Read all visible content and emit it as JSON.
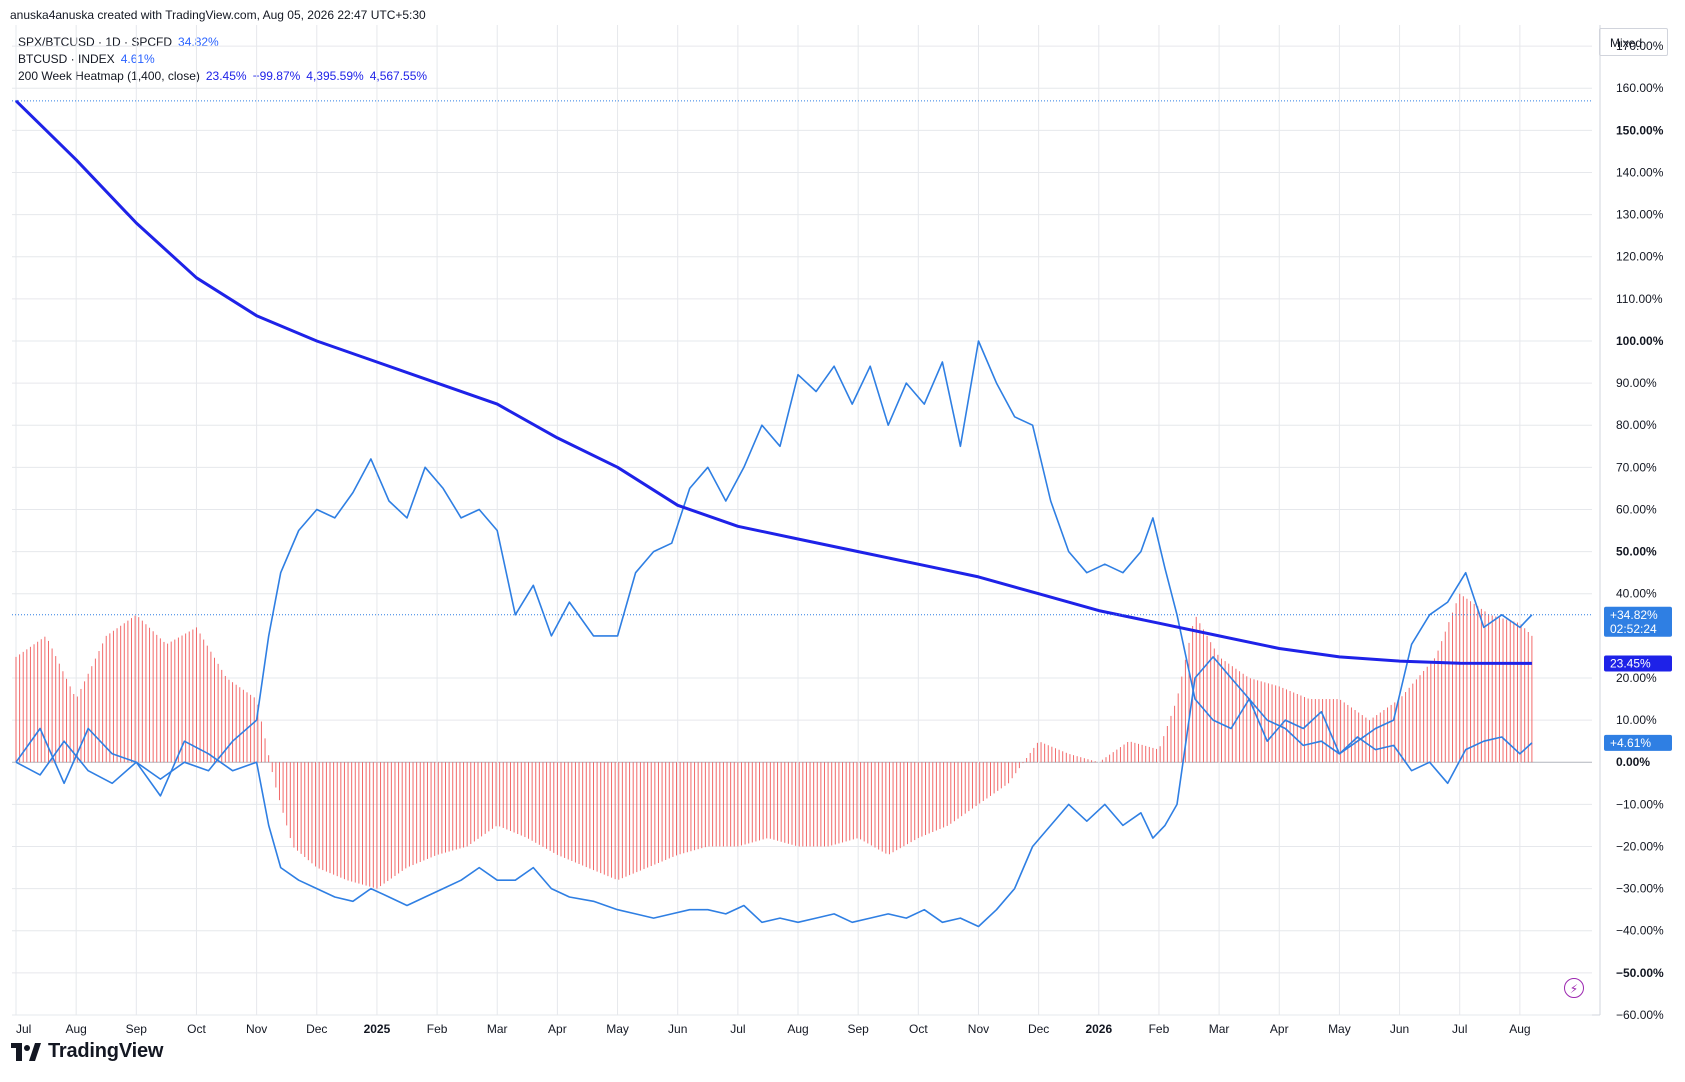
{
  "header": {
    "attribution": "anuska4anuska created with TradingView.com, Aug 05, 2026 22:47 UTC+5:30"
  },
  "legend": [
    {
      "name": "SPX/BTCUSD · 1D · SPCFD",
      "values": [
        "34.82%"
      ]
    },
    {
      "name": "BTCUSD · INDEX",
      "values": [
        "4.61%"
      ]
    },
    {
      "name": "200 Week Heatmap (1,400, close)",
      "values": [
        "23.45%",
        "−99.87%",
        "4,395.59%",
        "4,567.55%"
      ]
    }
  ],
  "scale_mode": "Mixed",
  "footer": {
    "brand": "TradingView"
  },
  "colors": {
    "spx_btc": "#2f7fe3",
    "btcusd": "#2f7fe3",
    "heatmap_ma": "#1e22e8",
    "heatmap_bars": "#f05050",
    "grid": "#e6e8ec"
  },
  "chart_data": {
    "type": "line",
    "ylim": [
      -60,
      175
    ],
    "yticks": [
      "170.00%",
      "160.00%",
      "150.00%",
      "140.00%",
      "130.00%",
      "120.00%",
      "110.00%",
      "100.00%",
      "90.00%",
      "80.00%",
      "70.00%",
      "60.00%",
      "50.00%",
      "40.00%",
      "20.00%",
      "10.00%",
      "0.00%",
      "−10.00%",
      "−20.00%",
      "−30.00%",
      "−40.00%",
      "−50.00%",
      "−60.00%"
    ],
    "ytick_values": [
      170,
      160,
      150,
      140,
      130,
      120,
      110,
      100,
      90,
      80,
      70,
      60,
      50,
      40,
      20,
      10,
      0,
      -10,
      -20,
      -30,
      -40,
      -50,
      -60
    ],
    "ytick_bold": [
      "150.00%",
      "100.00%",
      "50.00%",
      "0.00%",
      "−50.00%"
    ],
    "xticks": [
      "Jul",
      "Aug",
      "Sep",
      "Oct",
      "Nov",
      "Dec",
      "2025",
      "Feb",
      "Mar",
      "Apr",
      "May",
      "Jun",
      "Jul",
      "Aug",
      "Sep",
      "Oct",
      "Nov",
      "Dec",
      "2026",
      "Feb",
      "Mar",
      "Apr",
      "May",
      "Jun",
      "Jul",
      "Aug"
    ],
    "xtick_bold": [
      "2025",
      "2026"
    ],
    "xlim_months": [
      0,
      25.8
    ],
    "series": [
      {
        "name": "SPX/BTCUSD · 1D · SPCFD",
        "last_label": "+34.82%",
        "countdown": "02:52:24",
        "x": [
          0,
          0.4,
          0.8,
          1.2,
          1.6,
          2,
          2.4,
          2.8,
          3.2,
          3.6,
          4,
          4.2,
          4.4,
          4.7,
          5,
          5.3,
          5.6,
          5.9,
          6.2,
          6.5,
          6.8,
          7.1,
          7.4,
          7.7,
          8,
          8.3,
          8.6,
          8.9,
          9.2,
          9.6,
          10,
          10.3,
          10.6,
          10.9,
          11.2,
          11.5,
          11.8,
          12.1,
          12.4,
          12.7,
          13,
          13.3,
          13.6,
          13.9,
          14.2,
          14.5,
          14.8,
          15.1,
          15.4,
          15.7,
          16,
          16.3,
          16.6,
          16.9,
          17.2,
          17.5,
          17.8,
          18.1,
          18.4,
          18.7,
          18.9,
          19.1,
          19.3,
          19.6,
          19.9,
          20.2,
          20.5,
          20.8,
          21.1,
          21.4,
          21.7,
          22,
          22.3,
          22.6,
          22.9,
          23.2,
          23.5,
          23.8,
          24.1,
          24.4,
          24.7,
          25,
          25.2
        ],
        "values": [
          0,
          -3,
          5,
          -2,
          -5,
          0,
          -4,
          0,
          -2,
          5,
          10,
          30,
          45,
          55,
          60,
          58,
          64,
          72,
          62,
          58,
          70,
          65,
          58,
          60,
          55,
          35,
          42,
          30,
          38,
          30,
          30,
          45,
          50,
          52,
          65,
          70,
          62,
          70,
          80,
          75,
          92,
          88,
          94,
          85,
          94,
          80,
          90,
          85,
          95,
          75,
          100,
          90,
          82,
          80,
          62,
          50,
          45,
          47,
          45,
          50,
          58,
          46,
          35,
          15,
          10,
          8,
          15,
          5,
          10,
          8,
          12,
          2,
          5,
          8,
          10,
          28,
          35,
          38,
          45,
          32,
          35,
          32,
          35
        ]
      },
      {
        "name": "BTCUSD · INDEX",
        "last_label": "+4.61%",
        "x": [
          0,
          0.4,
          0.8,
          1.2,
          1.6,
          2,
          2.4,
          2.8,
          3.2,
          3.6,
          4,
          4.2,
          4.4,
          4.7,
          5,
          5.3,
          5.6,
          5.9,
          6.2,
          6.5,
          6.8,
          7.1,
          7.4,
          7.7,
          8,
          8.3,
          8.6,
          8.9,
          9.2,
          9.6,
          10,
          10.3,
          10.6,
          10.9,
          11.2,
          11.5,
          11.8,
          12.1,
          12.4,
          12.7,
          13,
          13.3,
          13.6,
          13.9,
          14.2,
          14.5,
          14.8,
          15.1,
          15.4,
          15.7,
          16,
          16.3,
          16.6,
          16.9,
          17.2,
          17.5,
          17.8,
          18.1,
          18.4,
          18.7,
          18.9,
          19.1,
          19.3,
          19.6,
          19.9,
          20.2,
          20.5,
          20.8,
          21.1,
          21.4,
          21.7,
          22,
          22.3,
          22.6,
          22.9,
          23.2,
          23.5,
          23.8,
          24.1,
          24.4,
          24.7,
          25,
          25.2
        ],
        "values": [
          0,
          8,
          -5,
          8,
          2,
          0,
          -8,
          5,
          2,
          -2,
          0,
          -15,
          -25,
          -28,
          -30,
          -32,
          -33,
          -30,
          -32,
          -34,
          -32,
          -30,
          -28,
          -25,
          -28,
          -28,
          -25,
          -30,
          -32,
          -33,
          -35,
          -36,
          -37,
          -36,
          -35,
          -35,
          -36,
          -34,
          -38,
          -37,
          -38,
          -37,
          -36,
          -38,
          -37,
          -36,
          -37,
          -35,
          -38,
          -37,
          -39,
          -35,
          -30,
          -20,
          -15,
          -10,
          -14,
          -10,
          -15,
          -12,
          -18,
          -15,
          -10,
          20,
          25,
          20,
          15,
          10,
          8,
          4,
          5,
          2,
          6,
          3,
          4,
          -2,
          0,
          -5,
          3,
          5,
          6,
          2,
          4.6
        ]
      },
      {
        "name": "200 Week Heatmap (1,400, close)",
        "last_label": "23.45%",
        "x": [
          0,
          1,
          2,
          3,
          4,
          5,
          6,
          7,
          8,
          9,
          10,
          11,
          12,
          13,
          14,
          15,
          16,
          17,
          18,
          19,
          20,
          21,
          22,
          23,
          24,
          25.2
        ],
        "values": [
          157,
          143,
          128,
          115,
          106,
          100,
          95,
          90,
          85,
          77,
          70,
          61,
          56,
          53,
          50,
          47,
          44,
          40,
          36,
          33,
          30,
          27,
          25,
          24,
          23.5,
          23.45
        ]
      }
    ],
    "heatmap_histogram": {
      "name": "200 Week Heatmap (1,400, close)",
      "x": [
        0,
        0.5,
        1,
        1.5,
        2,
        2.5,
        3,
        3.5,
        4,
        4.3,
        4.6,
        5,
        5.5,
        6,
        6.5,
        7,
        7.5,
        8,
        8.5,
        9,
        9.5,
        10,
        10.5,
        11,
        11.5,
        12,
        12.5,
        13,
        13.5,
        14,
        14.5,
        15,
        15.5,
        16,
        16.5,
        17,
        17.5,
        18,
        18.5,
        19,
        19.3,
        19.6,
        20,
        20.5,
        21,
        21.5,
        22,
        22.5,
        23,
        23.3,
        23.6,
        24,
        24.5,
        25,
        25.2
      ],
      "values": [
        25,
        30,
        15,
        30,
        35,
        28,
        32,
        20,
        15,
        -5,
        -20,
        -25,
        -28,
        -30,
        -25,
        -22,
        -20,
        -15,
        -18,
        -22,
        -25,
        -28,
        -25,
        -22,
        -20,
        -20,
        -18,
        -20,
        -20,
        -18,
        -22,
        -18,
        -15,
        -10,
        -5,
        5,
        2,
        0,
        5,
        3,
        15,
        35,
        25,
        20,
        18,
        15,
        15,
        10,
        15,
        20,
        25,
        40,
        35,
        33,
        30
      ]
    }
  }
}
